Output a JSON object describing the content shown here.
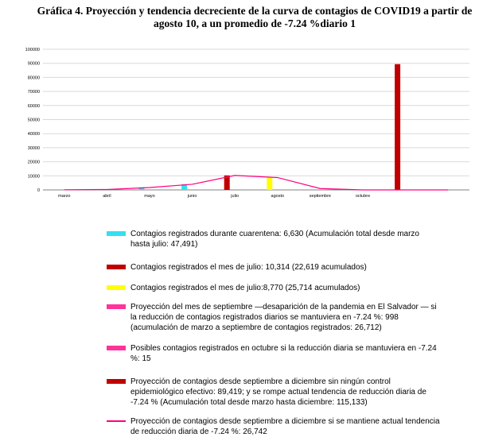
{
  "title": "Gráfica 4. Proyección y tendencia decreciente de la curva de contagios de COVID19 a partir de agosto 10, a un promedio de -7.24 %diario 1",
  "colors": {
    "cyan": "#33e0f0",
    "darkred": "#c00000",
    "yellow": "#ffff00",
    "pink": "#ff3399",
    "magenta": "#ff0080",
    "grid": "#d9d9d9"
  },
  "chart_data": {
    "type": "bar",
    "categories": [
      "marzo",
      "abril",
      "mayo",
      "junio",
      "julio",
      "agosto",
      "septiembre",
      "octubre",
      "",
      ""
    ],
    "ylim": [
      0,
      100000
    ],
    "yticks": [
      "0",
      "10000",
      "20000",
      "30000",
      "40000",
      "50000",
      "60000",
      "70000",
      "80000",
      "90000",
      "100000"
    ],
    "grid": true,
    "series": [
      {
        "color": "#33e0f0",
        "values": [
          0,
          0,
          1800,
          4100,
          0,
          0,
          0,
          0,
          0,
          0
        ]
      },
      {
        "color": "#c00000",
        "values": [
          0,
          0,
          0,
          0,
          10314,
          0,
          0,
          0,
          89419,
          0
        ]
      },
      {
        "color": "#ffff00",
        "values": [
          0,
          0,
          0,
          0,
          0,
          8770,
          0,
          0,
          0,
          0
        ]
      }
    ],
    "line": {
      "color": "#ff0080",
      "values": [
        100,
        300,
        1700,
        4000,
        10314,
        8770,
        998,
        15,
        0,
        0
      ]
    }
  },
  "legend": [
    {
      "swatch": "bar",
      "color": "#33e0f0",
      "text": "Contagios registrados durante cuarentena: 6,630  (Acumulación total desde marzo hasta julio: 47,491)"
    },
    {
      "swatch": "bar",
      "color": "#c00000",
      "text": "Contagios registrados el mes de julio: 10,314 (22,619 acumulados)"
    },
    {
      "swatch": "bar",
      "color": "#ffff00",
      "text": "Contagios registrados el mes de julio:8,770 (25,714 acumulados)"
    },
    {
      "swatch": "bar",
      "color": "#ff3399",
      "text": "Proyección del mes de septiembre —desaparición de la pandemia en El Salvador — si la reducción de contagios registrados diarios se mantuviera en -7.24 %: 998 (acumulación de marzo a septiembre de contagios registrados: 26,712)"
    },
    {
      "swatch": "bar",
      "color": "#ff3399",
      "text": "Posibles contagios registrados en octubre si la reducción diaria se mantuviera en -7.24 %: 15"
    },
    {
      "swatch": "bar",
      "color": "#c00000",
      "text": "Proyección de contagios desde septiembre a diciembre sin ningún control epidemiológico efectivo: 89,419; y se rompe actual tendencia de reducción diaria de -7.24 % (Acumulación total desde marzo hasta diciembre: 115,133)"
    },
    {
      "swatch": "line",
      "color": "#ff0080",
      "text": "Proyección de contagios desde septiembre a diciembre si se mantiene actual tendencia de reducción diaria de -7.24 %: 26,742"
    }
  ]
}
